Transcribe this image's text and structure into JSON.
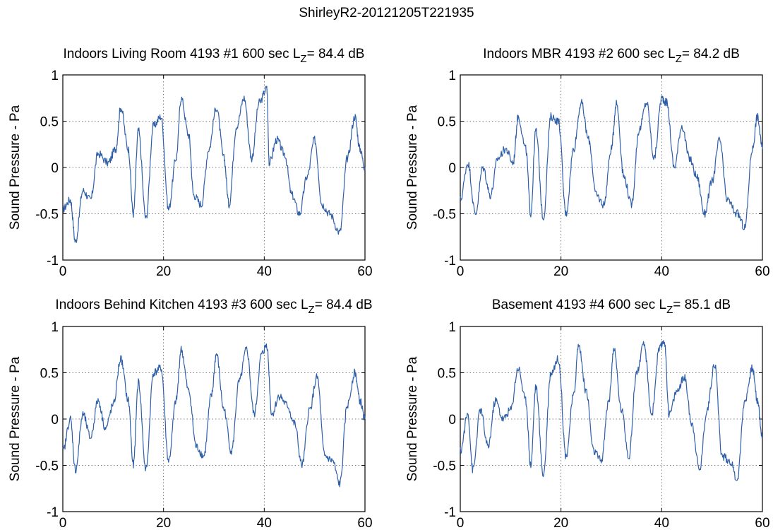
{
  "figure_title": "ShirleyR2-20121205T221935",
  "chart_data": [
    {
      "type": "line",
      "title": "Indoors Living Room 4193 #1 600 sec",
      "title_level_prefix": "L",
      "title_level_subscript": "Z",
      "title_level_value": "= 84.4 dB",
      "ylabel": "Sound Pressure - Pa",
      "xlabel": "",
      "xlim": [
        0,
        60
      ],
      "ylim": [
        -1,
        1
      ],
      "xticks": [
        "0",
        "20",
        "40",
        "60"
      ],
      "yticks": [
        "-1",
        "-0.5",
        "0",
        "0.5",
        "1"
      ],
      "grid": true,
      "color": "#2e5fa8",
      "series": [
        {
          "x": [
            0,
            1.5,
            2.5,
            4,
            5.5,
            7,
            9,
            10.5,
            11.5,
            13,
            14,
            15,
            16.5,
            18,
            19.5,
            21,
            22.5,
            23.5,
            25,
            26,
            27.5,
            29,
            30.5,
            32,
            33,
            34.5,
            36,
            37.5,
            39,
            40.5,
            41,
            42.5,
            44,
            45.5,
            47,
            48.5,
            50,
            51.5,
            53,
            55,
            56.5,
            58,
            59,
            60
          ],
          "y": [
            -0.45,
            -0.35,
            -0.8,
            -0.25,
            -0.35,
            0.15,
            0.05,
            0.2,
            0.65,
            0.2,
            -0.5,
            0.4,
            -0.55,
            0.45,
            0.55,
            -0.45,
            0.1,
            0.75,
            0.35,
            -0.3,
            -0.4,
            0.2,
            0.65,
            0.1,
            -0.4,
            0.45,
            0.75,
            0.1,
            0.7,
            0.85,
            0.05,
            0.3,
            0.15,
            -0.3,
            -0.5,
            -0.1,
            0.3,
            -0.4,
            -0.5,
            -0.7,
            0.1,
            0.55,
            0.2,
            0.0
          ]
        }
      ]
    },
    {
      "type": "line",
      "title": "Indoors MBR 4193 #2 600 sec",
      "title_level_prefix": "L",
      "title_level_subscript": "Z",
      "title_level_value": "= 84.2 dB",
      "ylabel": "Sound Pressure - Pa",
      "xlabel": "",
      "xlim": [
        0,
        60
      ],
      "ylim": [
        -1,
        1
      ],
      "xticks": [
        "0",
        "20",
        "40",
        "60"
      ],
      "yticks": [
        "-1",
        "-0.5",
        "0",
        "0.5",
        "1"
      ],
      "grid": true,
      "color": "#2e5fa8",
      "series": [
        {
          "x": [
            0,
            1.5,
            3,
            4.5,
            6,
            7.5,
            9,
            10.5,
            11.5,
            13,
            14,
            15,
            16.5,
            18,
            19.5,
            21,
            22.5,
            24,
            25.5,
            27,
            28.5,
            30,
            31,
            32.5,
            34,
            35.5,
            37,
            38.5,
            40,
            41,
            42.5,
            44,
            45.5,
            47,
            48.5,
            50,
            51.5,
            53,
            55,
            56.5,
            58,
            59,
            60
          ],
          "y": [
            -0.35,
            0.05,
            -0.5,
            0.0,
            -0.3,
            0.1,
            0.2,
            0.05,
            0.55,
            0.2,
            -0.5,
            0.4,
            -0.55,
            0.55,
            0.5,
            -0.5,
            0.2,
            0.7,
            0.3,
            -0.3,
            -0.4,
            0.2,
            0.7,
            -0.1,
            -0.4,
            0.4,
            0.7,
            0.1,
            0.75,
            0.7,
            0.0,
            0.45,
            0.1,
            -0.1,
            -0.5,
            -0.15,
            0.3,
            -0.35,
            -0.5,
            -0.65,
            0.2,
            0.55,
            0.2
          ]
        }
      ]
    },
    {
      "type": "line",
      "title": "Indoors Behind Kitchen 4193 #3 600 sec",
      "title_level_prefix": "L",
      "title_level_subscript": "Z",
      "title_level_value": "= 84.4 dB",
      "ylabel": "Sound Pressure - Pa",
      "xlabel": "",
      "xlim": [
        0,
        60
      ],
      "ylim": [
        -1,
        1
      ],
      "xticks": [
        "0",
        "20",
        "40",
        "60"
      ],
      "yticks": [
        "-1",
        "-0.5",
        "0",
        "0.5",
        "1"
      ],
      "grid": true,
      "color": "#2e5fa8",
      "series": [
        {
          "x": [
            0,
            1.5,
            2.5,
            4,
            5.5,
            7,
            8.5,
            10,
            11.5,
            13,
            14,
            15,
            16.5,
            18,
            19.5,
            21,
            22.5,
            23.5,
            25,
            26.5,
            28,
            29.5,
            30.5,
            32,
            33.5,
            35,
            36.5,
            38,
            39.5,
            40.5,
            41.5,
            43,
            44.5,
            46,
            47.5,
            49,
            50.5,
            52,
            53.5,
            55,
            56.5,
            58,
            59,
            60
          ],
          "y": [
            -0.35,
            0.0,
            -0.55,
            0.05,
            -0.2,
            0.2,
            -0.1,
            0.15,
            0.65,
            0.2,
            -0.5,
            0.4,
            -0.55,
            0.5,
            0.55,
            -0.45,
            0.2,
            0.75,
            0.3,
            -0.3,
            -0.4,
            0.25,
            0.7,
            0.1,
            -0.35,
            0.4,
            0.75,
            0.05,
            0.7,
            0.8,
            0.05,
            0.25,
            0.15,
            -0.05,
            -0.5,
            0.1,
            0.45,
            -0.4,
            -0.45,
            -0.7,
            0.15,
            0.5,
            0.2,
            0.0
          ]
        }
      ]
    },
    {
      "type": "line",
      "title": "Basement 4193 #4 600 sec",
      "title_level_prefix": "L",
      "title_level_subscript": "Z",
      "title_level_value": "= 85.1 dB",
      "ylabel": "Sound Pressure - Pa",
      "xlabel": "",
      "xlim": [
        0,
        60
      ],
      "ylim": [
        -1,
        1
      ],
      "xticks": [
        "0",
        "20",
        "40",
        "60"
      ],
      "yticks": [
        "-1",
        "-0.5",
        "0",
        "0.5",
        "1"
      ],
      "grid": true,
      "color": "#2e5fa8",
      "series": [
        {
          "x": [
            0,
            1.5,
            2.5,
            4,
            5.5,
            7,
            8.5,
            10,
            11.5,
            13,
            14,
            15,
            16.5,
            18,
            19.5,
            21,
            22.5,
            23.5,
            25,
            26.5,
            28,
            29.5,
            30.5,
            32,
            33.5,
            35,
            36.5,
            38,
            39.5,
            40.5,
            41.5,
            43,
            44.5,
            46,
            47.5,
            49,
            50.5,
            52,
            53.5,
            55,
            56.5,
            58,
            59,
            60
          ],
          "y": [
            -0.35,
            0.05,
            -0.55,
            0.1,
            -0.3,
            0.2,
            0.0,
            0.1,
            0.55,
            0.2,
            -0.5,
            0.35,
            -0.6,
            0.5,
            0.65,
            -0.4,
            0.25,
            0.8,
            0.3,
            -0.35,
            -0.45,
            0.2,
            0.75,
            0.1,
            -0.4,
            0.5,
            0.8,
            0.05,
            0.75,
            0.85,
            0.05,
            0.3,
            0.45,
            -0.05,
            -0.55,
            0.1,
            0.6,
            -0.4,
            -0.45,
            -0.65,
            0.2,
            0.55,
            0.2,
            -0.2
          ]
        }
      ]
    }
  ]
}
